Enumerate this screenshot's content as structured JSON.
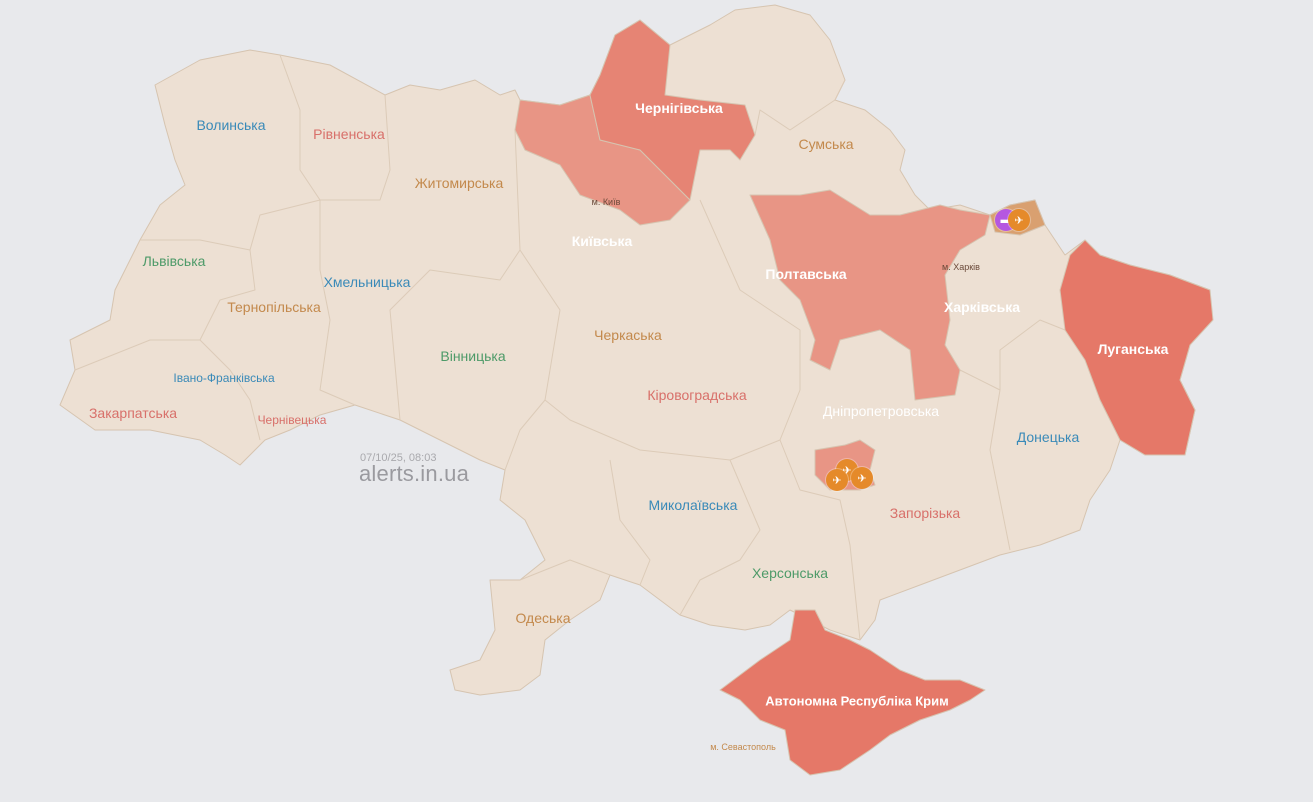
{
  "timestamp": "07/10/25, 08:03",
  "brand": "alerts.in.ua",
  "colors": {
    "background": "#e8e9ec",
    "land": "#ede0d3",
    "border": "#d6c4b0",
    "alert_strong": "#e57868",
    "alert_light": "#e89585",
    "partial_alert": "#d9a070",
    "artillery_marker": "#e58a2a",
    "vehicle_marker": "#b557e0"
  },
  "regions": [
    {
      "name": "Волинська",
      "alert": false
    },
    {
      "name": "Рівненська",
      "alert": false
    },
    {
      "name": "Житомирська",
      "alert": false
    },
    {
      "name": "Чернігівська",
      "alert": true
    },
    {
      "name": "Сумська",
      "alert": false
    },
    {
      "name": "Київська",
      "alert": true
    },
    {
      "name": "Львівська",
      "alert": false
    },
    {
      "name": "Хмельницька",
      "alert": false
    },
    {
      "name": "Тернопільська",
      "alert": false
    },
    {
      "name": "Полтавська",
      "alert": true
    },
    {
      "name": "Харківська",
      "alert": "partial"
    },
    {
      "name": "Луганська",
      "alert": true
    },
    {
      "name": "Вінницька",
      "alert": false
    },
    {
      "name": "Черкаська",
      "alert": false
    },
    {
      "name": "Івано-Франківська",
      "alert": false
    },
    {
      "name": "Закарпатська",
      "alert": false
    },
    {
      "name": "Чернівецька",
      "alert": false
    },
    {
      "name": "Кіровоградська",
      "alert": false
    },
    {
      "name": "Дніпропетровська",
      "alert": "partial"
    },
    {
      "name": "Донецька",
      "alert": false
    },
    {
      "name": "Миколаївська",
      "alert": false
    },
    {
      "name": "Запорізька",
      "alert": "partial"
    },
    {
      "name": "Херсонська",
      "alert": false
    },
    {
      "name": "Одеська",
      "alert": false
    },
    {
      "name": "Автономна Республіка Крим",
      "alert": true
    }
  ],
  "cities": [
    {
      "name": "м. Київ"
    },
    {
      "name": "м. Харків"
    },
    {
      "name": "м. Севастополь"
    }
  ],
  "markers": [
    {
      "type": "vehicle",
      "icon": "armored-vehicle-icon",
      "glyph": "▬"
    },
    {
      "type": "artillery",
      "icon": "artillery-icon",
      "glyph": "✈"
    },
    {
      "type": "artillery",
      "icon": "artillery-icon",
      "glyph": "✈"
    },
    {
      "type": "artillery",
      "icon": "artillery-icon",
      "glyph": "✈"
    },
    {
      "type": "artillery",
      "icon": "artillery-icon",
      "glyph": "✈"
    }
  ]
}
